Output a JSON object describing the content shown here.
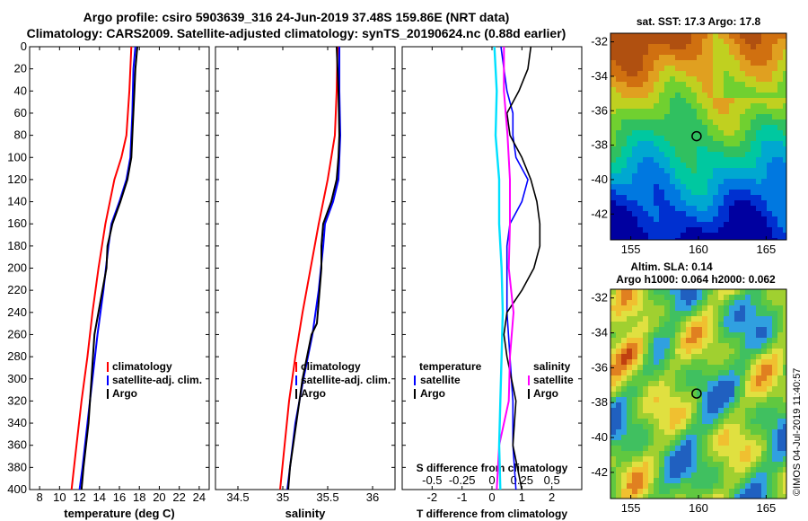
{
  "titles": {
    "line1": "Argo profile: csiro 5903639_316 24-Jun-2019 37.48S 159.86E (NRT data)",
    "line2": "Climatology: CARS2009. Satellite-adjusted climatology: synTS_20190624.nc (0.88d earlier)"
  },
  "colors": {
    "climatology": "#ff0000",
    "satellite": "#0000ff",
    "argo": "#000000",
    "s_satellite": "#ff00ff",
    "s_argo": "#00e0ff"
  },
  "watermark": "©IMOS 04-Jul-2019 11:40:57",
  "chart_data": [
    {
      "type": "line",
      "name": "temperature-panel",
      "xlabel": "temperature (deg C)",
      "ylabel": "",
      "xlim": [
        7,
        25
      ],
      "ylim": [
        400,
        0
      ],
      "xticks": [
        "8",
        "10",
        "12",
        "14",
        "16",
        "18",
        "20",
        "22",
        "24"
      ],
      "yticks": [
        "0",
        "20",
        "40",
        "60",
        "80",
        "100",
        "120",
        "140",
        "160",
        "180",
        "200",
        "220",
        "240",
        "260",
        "280",
        "300",
        "320",
        "340",
        "360",
        "380",
        "400"
      ],
      "legend": [
        "climatology",
        "satellite-adj. clim.",
        "Argo"
      ],
      "legend_position": "lower-right",
      "series": [
        {
          "name": "climatology",
          "depth": [
            0,
            40,
            80,
            100,
            120,
            160,
            200,
            240,
            280,
            320,
            360,
            400
          ],
          "values": [
            17.2,
            17.0,
            16.7,
            16.2,
            15.5,
            14.6,
            13.9,
            13.3,
            12.8,
            12.2,
            11.7,
            11.2
          ]
        },
        {
          "name": "satellite-adj. clim.",
          "depth": [
            0,
            20,
            60,
            100,
            120,
            140,
            160,
            180,
            220,
            260,
            300,
            340,
            380,
            400
          ],
          "values": [
            17.6,
            17.4,
            17.3,
            17.1,
            16.7,
            16.0,
            15.2,
            14.9,
            14.4,
            13.8,
            13.3,
            12.8,
            12.3,
            12.0
          ]
        },
        {
          "name": "Argo",
          "depth": [
            0,
            20,
            40,
            80,
            100,
            120,
            140,
            160,
            180,
            200,
            220,
            260,
            300,
            340,
            380,
            400
          ],
          "values": [
            17.8,
            17.6,
            17.5,
            17.3,
            17.2,
            16.8,
            16.1,
            15.3,
            14.8,
            14.7,
            14.3,
            13.5,
            13.2,
            12.9,
            12.4,
            12.2
          ]
        }
      ]
    },
    {
      "type": "line",
      "name": "salinity-panel",
      "xlabel": "salinity",
      "xlim": [
        34.25,
        36.25
      ],
      "ylim": [
        400,
        0
      ],
      "xticks": [
        "34.5",
        "35",
        "35.5",
        "36"
      ],
      "legend": [
        "climatology",
        "satellite-adj. clim.",
        "Argo"
      ],
      "legend_position": "lower-right",
      "series": [
        {
          "name": "climatology",
          "depth": [
            0,
            40,
            80,
            120,
            160,
            200,
            240,
            280,
            320,
            360,
            400
          ],
          "values": [
            35.61,
            35.6,
            35.58,
            35.5,
            35.4,
            35.31,
            35.22,
            35.14,
            35.07,
            35.02,
            34.97
          ]
        },
        {
          "name": "satellite-adj. clim.",
          "depth": [
            0,
            40,
            80,
            100,
            120,
            140,
            160,
            180,
            220,
            260,
            300,
            340,
            380,
            400
          ],
          "values": [
            35.63,
            35.63,
            35.64,
            35.63,
            35.62,
            35.56,
            35.47,
            35.45,
            35.4,
            35.33,
            35.23,
            35.14,
            35.08,
            35.05
          ]
        },
        {
          "name": "Argo",
          "depth": [
            0,
            40,
            80,
            100,
            120,
            140,
            160,
            180,
            200,
            220,
            250,
            260,
            300,
            340,
            380,
            400
          ],
          "values": [
            35.6,
            35.62,
            35.63,
            35.62,
            35.6,
            35.54,
            35.45,
            35.43,
            35.43,
            35.41,
            35.38,
            35.32,
            35.22,
            35.15,
            35.08,
            35.06
          ]
        }
      ]
    },
    {
      "type": "line",
      "name": "difference-panel",
      "xlabel": "T difference from climatology",
      "xlabel2": "S difference from climatology",
      "xlim": [
        -3,
        3
      ],
      "ylim": [
        400,
        0
      ],
      "xticks": [
        "-2",
        "-1",
        "0",
        "1",
        "2"
      ],
      "xticks2": [
        "-0.5",
        "-0.25",
        "0",
        "0.25",
        "0.5"
      ],
      "legend_temperature": [
        "temperature",
        "satellite",
        "Argo"
      ],
      "legend_salinity": [
        "salinity",
        "satellite",
        "Argo"
      ],
      "legend_position": "lower",
      "series": [
        {
          "name": "T satellite",
          "depth": [
            0,
            20,
            40,
            60,
            80,
            100,
            120,
            140,
            160,
            180,
            200,
            240,
            280,
            320,
            360,
            400
          ],
          "values": [
            0.3,
            0.4,
            0.5,
            0.7,
            0.7,
            0.8,
            1.2,
            1.0,
            0.6,
            0.5,
            0.5,
            0.5,
            0.6,
            0.7,
            0.7,
            0.8
          ]
        },
        {
          "name": "T Argo",
          "depth": [
            0,
            20,
            40,
            60,
            80,
            100,
            120,
            140,
            160,
            180,
            200,
            220,
            240,
            260,
            280,
            320,
            360,
            400
          ],
          "values": [
            1.3,
            1.2,
            0.9,
            0.5,
            0.6,
            1.0,
            1.3,
            1.5,
            1.6,
            1.6,
            1.4,
            1.0,
            0.5,
            0.4,
            0.5,
            0.8,
            0.7,
            1.0
          ]
        },
        {
          "name": "S satellite",
          "depth": [
            0,
            40,
            80,
            120,
            160,
            200,
            240,
            280,
            320,
            360,
            400
          ],
          "values": [
            0.1,
            0.1,
            0.13,
            0.15,
            0.15,
            0.14,
            0.18,
            0.15,
            0.14,
            0.06,
            0.04
          ]
        },
        {
          "name": "S Argo",
          "depth": [
            0,
            40,
            80,
            120,
            160,
            200,
            240,
            280,
            320,
            360,
            400
          ],
          "values": [
            0.02,
            0.04,
            0.03,
            0.06,
            0.06,
            0.08,
            0.09,
            0.08,
            0.07,
            0.06,
            0.07
          ]
        }
      ]
    },
    {
      "type": "heatmap",
      "name": "sst-map",
      "title": "sat. SST: 17.3  Argo: 17.8",
      "xticks": [
        "155",
        "160",
        "165"
      ],
      "yticks": [
        "-32",
        "-34",
        "-36",
        "-38",
        "-40",
        "-42"
      ],
      "xlim": [
        153.5,
        166.5
      ],
      "ylim": [
        -43.5,
        -31.5
      ],
      "marker": {
        "lon": 159.86,
        "lat": -37.48
      }
    },
    {
      "type": "heatmap",
      "name": "sla-map",
      "title": "Altim. SLA: 0.14",
      "subtitle": "Argo h1000: 0.064 h2000: 0.062",
      "xticks": [
        "155",
        "160",
        "165"
      ],
      "yticks": [
        "-32",
        "-34",
        "-36",
        "-38",
        "-40",
        "-42"
      ],
      "xlim": [
        153.5,
        166.5
      ],
      "ylim": [
        -43.5,
        -31.5
      ],
      "marker": {
        "lon": 159.86,
        "lat": -37.48
      }
    }
  ]
}
